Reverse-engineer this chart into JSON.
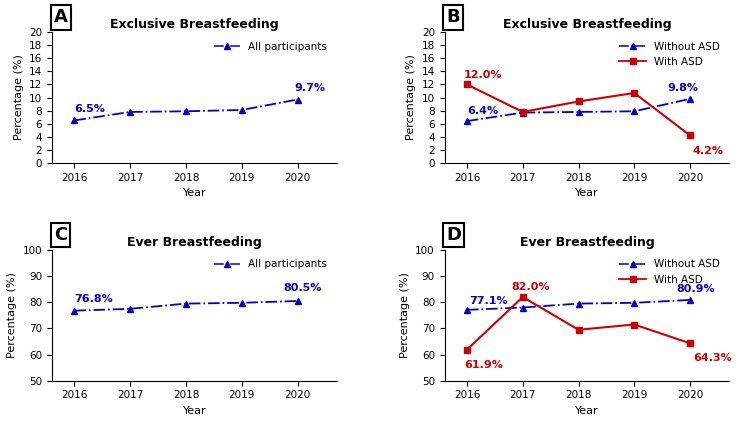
{
  "years": [
    2016,
    2017,
    2018,
    2019,
    2020
  ],
  "A": {
    "title": "Exclusive Breastfeeding",
    "all_participants": [
      6.5,
      7.8,
      7.9,
      8.1,
      9.7
    ],
    "label_first": "6.5%",
    "label_last": "9.7%",
    "ylim": [
      0,
      20
    ],
    "yticks": [
      0,
      2,
      4,
      6,
      8,
      10,
      12,
      14,
      16,
      18,
      20
    ],
    "legend_label": "All participants"
  },
  "B": {
    "title": "Exclusive Breastfeeding",
    "without_asd": [
      6.4,
      7.7,
      7.8,
      7.9,
      9.8
    ],
    "with_asd": [
      12.0,
      7.8,
      9.4,
      10.7,
      4.2
    ],
    "label_without_first": "6.4%",
    "label_without_last": "9.8%",
    "label_with_first": "12.0%",
    "label_with_last": "4.2%",
    "ylim": [
      0,
      20
    ],
    "yticks": [
      0,
      2,
      4,
      6,
      8,
      10,
      12,
      14,
      16,
      18,
      20
    ],
    "legend_without": "Without ASD",
    "legend_with": "With ASD"
  },
  "C": {
    "title": "Ever Breastfeeding",
    "all_participants": [
      76.8,
      77.5,
      79.5,
      79.8,
      80.5
    ],
    "label_first": "76.8%",
    "label_last": "80.5%",
    "ylim": [
      50,
      100
    ],
    "yticks": [
      50,
      60,
      70,
      80,
      90,
      100
    ],
    "legend_label": "All participants"
  },
  "D": {
    "title": "Ever Breastfeeding",
    "without_asd": [
      77.1,
      78.0,
      79.5,
      79.8,
      80.9
    ],
    "with_asd": [
      61.9,
      82.0,
      69.5,
      71.5,
      64.3
    ],
    "label_without_first": "77.1%",
    "label_without_last": "80.9%",
    "label_with_first": "61.9%",
    "label_with_second": "82.0%",
    "label_with_last": "64.3%",
    "ylim": [
      50,
      100
    ],
    "yticks": [
      50,
      60,
      70,
      80,
      90,
      100
    ],
    "legend_without": "Without ASD",
    "legend_with": "With ASD"
  },
  "blue_color": "#0000CC",
  "red_color": "#CC0000",
  "title_fontsize": 9,
  "axis_label_fontsize": 8,
  "tick_fontsize": 7.5,
  "annot_fontsize": 8,
  "legend_fontsize": 7.5,
  "panel_fontsize": 13
}
